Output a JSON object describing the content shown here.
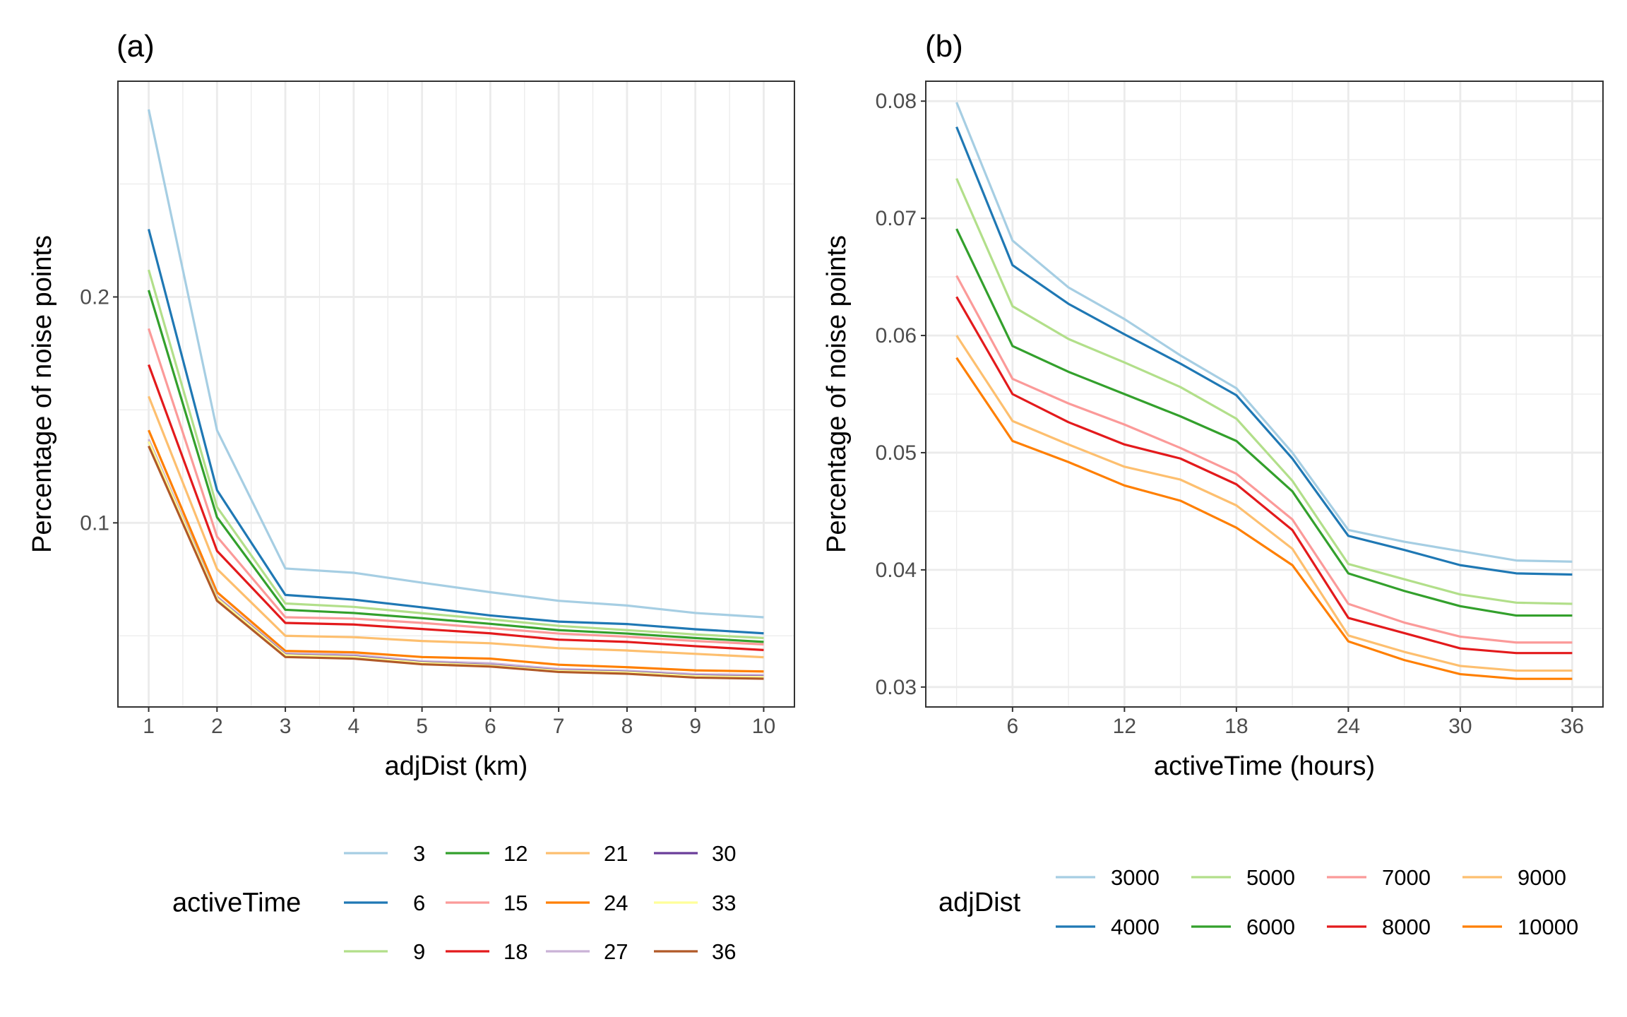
{
  "chart_data": [
    {
      "type": "line",
      "panel_label": "(a)",
      "xlabel": "adjDist (km)",
      "ylabel": "Percentage of noise points",
      "x": [
        1,
        2,
        3,
        4,
        5,
        6,
        7,
        8,
        9,
        10
      ],
      "xticks": [
        "1",
        "2",
        "3",
        "4",
        "5",
        "6",
        "7",
        "8",
        "9",
        "10"
      ],
      "yticks": [
        0.1,
        0.2
      ],
      "ytick_labels": [
        "0.1",
        "0.2"
      ],
      "xlim": [
        0.55,
        10.45
      ],
      "ylim": [
        0.0185,
        0.2955
      ],
      "grid": true,
      "legend": {
        "title": "activeTime",
        "placement": "bottom"
      },
      "series": [
        {
          "name": "3",
          "color": "#A6CEE3",
          "values": [
            0.283,
            0.141,
            0.0798,
            0.0779,
            0.0735,
            0.0693,
            0.0655,
            0.0634,
            0.0601,
            0.0582
          ]
        },
        {
          "name": "6",
          "color": "#1F78B4",
          "values": [
            0.23,
            0.1145,
            0.0681,
            0.066,
            0.0626,
            0.059,
            0.0563,
            0.0552,
            0.0529,
            0.0511
          ]
        },
        {
          "name": "9",
          "color": "#B2DF8A",
          "values": [
            0.212,
            0.107,
            0.0643,
            0.0628,
            0.06,
            0.0573,
            0.0544,
            0.0525,
            0.0506,
            0.049
          ]
        },
        {
          "name": "12",
          "color": "#33A02C",
          "values": [
            0.203,
            0.1025,
            0.0615,
            0.0601,
            0.0578,
            0.0553,
            0.0525,
            0.051,
            0.049,
            0.0473
          ]
        },
        {
          "name": "15",
          "color": "#FB9A99",
          "values": [
            0.186,
            0.0939,
            0.0582,
            0.0576,
            0.0557,
            0.0534,
            0.051,
            0.0496,
            0.0477,
            0.0462
          ]
        },
        {
          "name": "18",
          "color": "#E31A1C",
          "values": [
            0.17,
            0.0876,
            0.0557,
            0.055,
            0.053,
            0.0511,
            0.0483,
            0.0473,
            0.0454,
            0.0437
          ]
        },
        {
          "name": "21",
          "color": "#FDBF6F",
          "values": [
            0.156,
            0.0796,
            0.05,
            0.0494,
            0.0477,
            0.0467,
            0.0445,
            0.0435,
            0.042,
            0.0405
          ]
        },
        {
          "name": "24",
          "color": "#FF7F00",
          "values": [
            0.141,
            0.0693,
            0.0433,
            0.0427,
            0.0406,
            0.0399,
            0.0372,
            0.0361,
            0.0347,
            0.0342
          ]
        },
        {
          "name": "27",
          "color": "#CAB2D6",
          "values": [
            0.137,
            0.0674,
            0.0422,
            0.0416,
            0.0387,
            0.0378,
            0.0353,
            0.0345,
            0.033,
            0.0326
          ]
        },
        {
          "name": "30",
          "color": "#6A3D9A",
          "values": [
            0.136,
            0.0668,
            0.0416,
            0.0408,
            0.0382,
            0.037,
            0.0347,
            0.034,
            0.0323,
            0.0319
          ]
        },
        {
          "name": "33",
          "color": "#FFFF99",
          "values": [
            0.136,
            0.0666,
            0.0414,
            0.0406,
            0.038,
            0.0368,
            0.0345,
            0.0338,
            0.0321,
            0.0317
          ]
        },
        {
          "name": "36",
          "color": "#B15928",
          "values": [
            0.134,
            0.0655,
            0.0406,
            0.0399,
            0.0374,
            0.0364,
            0.034,
            0.0332,
            0.0315,
            0.031
          ]
        }
      ]
    },
    {
      "type": "line",
      "panel_label": "(b)",
      "xlabel": "activeTime (hours)",
      "ylabel": "Percentage of noise points",
      "x": [
        3,
        6,
        9,
        12,
        15,
        18,
        21,
        24,
        27,
        30,
        33,
        36
      ],
      "xticks": [
        "6",
        "12",
        "18",
        "24",
        "30",
        "36"
      ],
      "yticks": [
        0.03,
        0.04,
        0.05,
        0.06,
        0.07,
        0.08
      ],
      "ytick_labels": [
        "0.03",
        "0.04",
        "0.05",
        "0.06",
        "0.07",
        "0.08"
      ],
      "xlim": [
        1.35,
        37.65
      ],
      "ylim": [
        0.0283,
        0.0817
      ],
      "grid": true,
      "legend": {
        "title": "adjDist",
        "placement": "bottom"
      },
      "series": [
        {
          "name": "3000",
          "color": "#A6CEE3",
          "values": [
            0.0799,
            0.0681,
            0.0641,
            0.0614,
            0.0583,
            0.0555,
            0.05,
            0.0434,
            0.0424,
            0.0416,
            0.0408,
            0.0407
          ]
        },
        {
          "name": "4000",
          "color": "#1F78B4",
          "values": [
            0.0778,
            0.066,
            0.0627,
            0.0601,
            0.0576,
            0.0549,
            0.0495,
            0.0429,
            0.0417,
            0.0404,
            0.0397,
            0.0396
          ]
        },
        {
          "name": "5000",
          "color": "#B2DF8A",
          "values": [
            0.0734,
            0.0625,
            0.0597,
            0.0577,
            0.0556,
            0.0529,
            0.0476,
            0.0405,
            0.0392,
            0.0379,
            0.0372,
            0.0371
          ]
        },
        {
          "name": "6000",
          "color": "#33A02C",
          "values": [
            0.0691,
            0.0591,
            0.0569,
            0.055,
            0.0531,
            0.051,
            0.0467,
            0.0397,
            0.0382,
            0.0369,
            0.0361,
            0.0361
          ]
        },
        {
          "name": "7000",
          "color": "#FB9A99",
          "values": [
            0.0651,
            0.0563,
            0.0542,
            0.0524,
            0.0504,
            0.0482,
            0.0443,
            0.0371,
            0.0355,
            0.0343,
            0.0338,
            0.0338
          ]
        },
        {
          "name": "8000",
          "color": "#E31A1C",
          "values": [
            0.0633,
            0.055,
            0.0526,
            0.0507,
            0.0495,
            0.0473,
            0.0434,
            0.0359,
            0.0346,
            0.0333,
            0.0329,
            0.0329
          ]
        },
        {
          "name": "9000",
          "color": "#FDBF6F",
          "values": [
            0.06,
            0.0527,
            0.0507,
            0.0488,
            0.0477,
            0.0455,
            0.0418,
            0.0344,
            0.033,
            0.0318,
            0.0314,
            0.0314
          ]
        },
        {
          "name": "10000",
          "color": "#FF7F00",
          "values": [
            0.0581,
            0.051,
            0.0492,
            0.0472,
            0.0459,
            0.0436,
            0.0404,
            0.0339,
            0.0323,
            0.0311,
            0.0307,
            0.0307
          ]
        }
      ]
    }
  ]
}
